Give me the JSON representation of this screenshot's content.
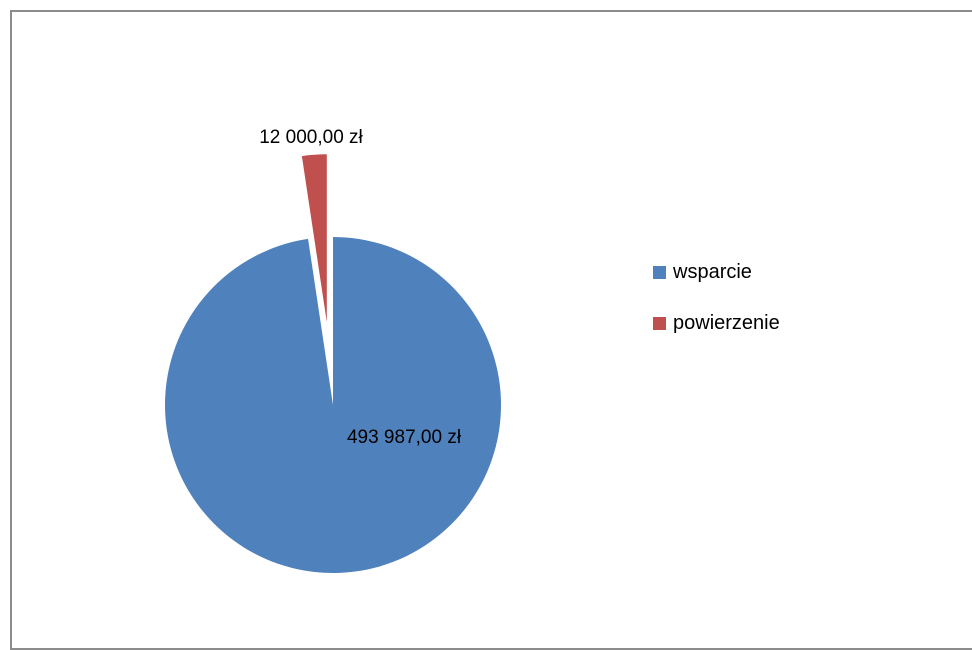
{
  "chart_data": {
    "type": "pie",
    "title": "",
    "categories": [
      "wsparcie",
      "powierzenie"
    ],
    "values": [
      493987.0,
      12000.0
    ],
    "data_labels": [
      "493 987,00 zł",
      "12 000,00 zł"
    ],
    "colors": [
      "#4f81bd",
      "#c0504d"
    ],
    "start_angle_deg": 0,
    "direction": "clockwise",
    "exploded": true,
    "legend_position": "right"
  }
}
